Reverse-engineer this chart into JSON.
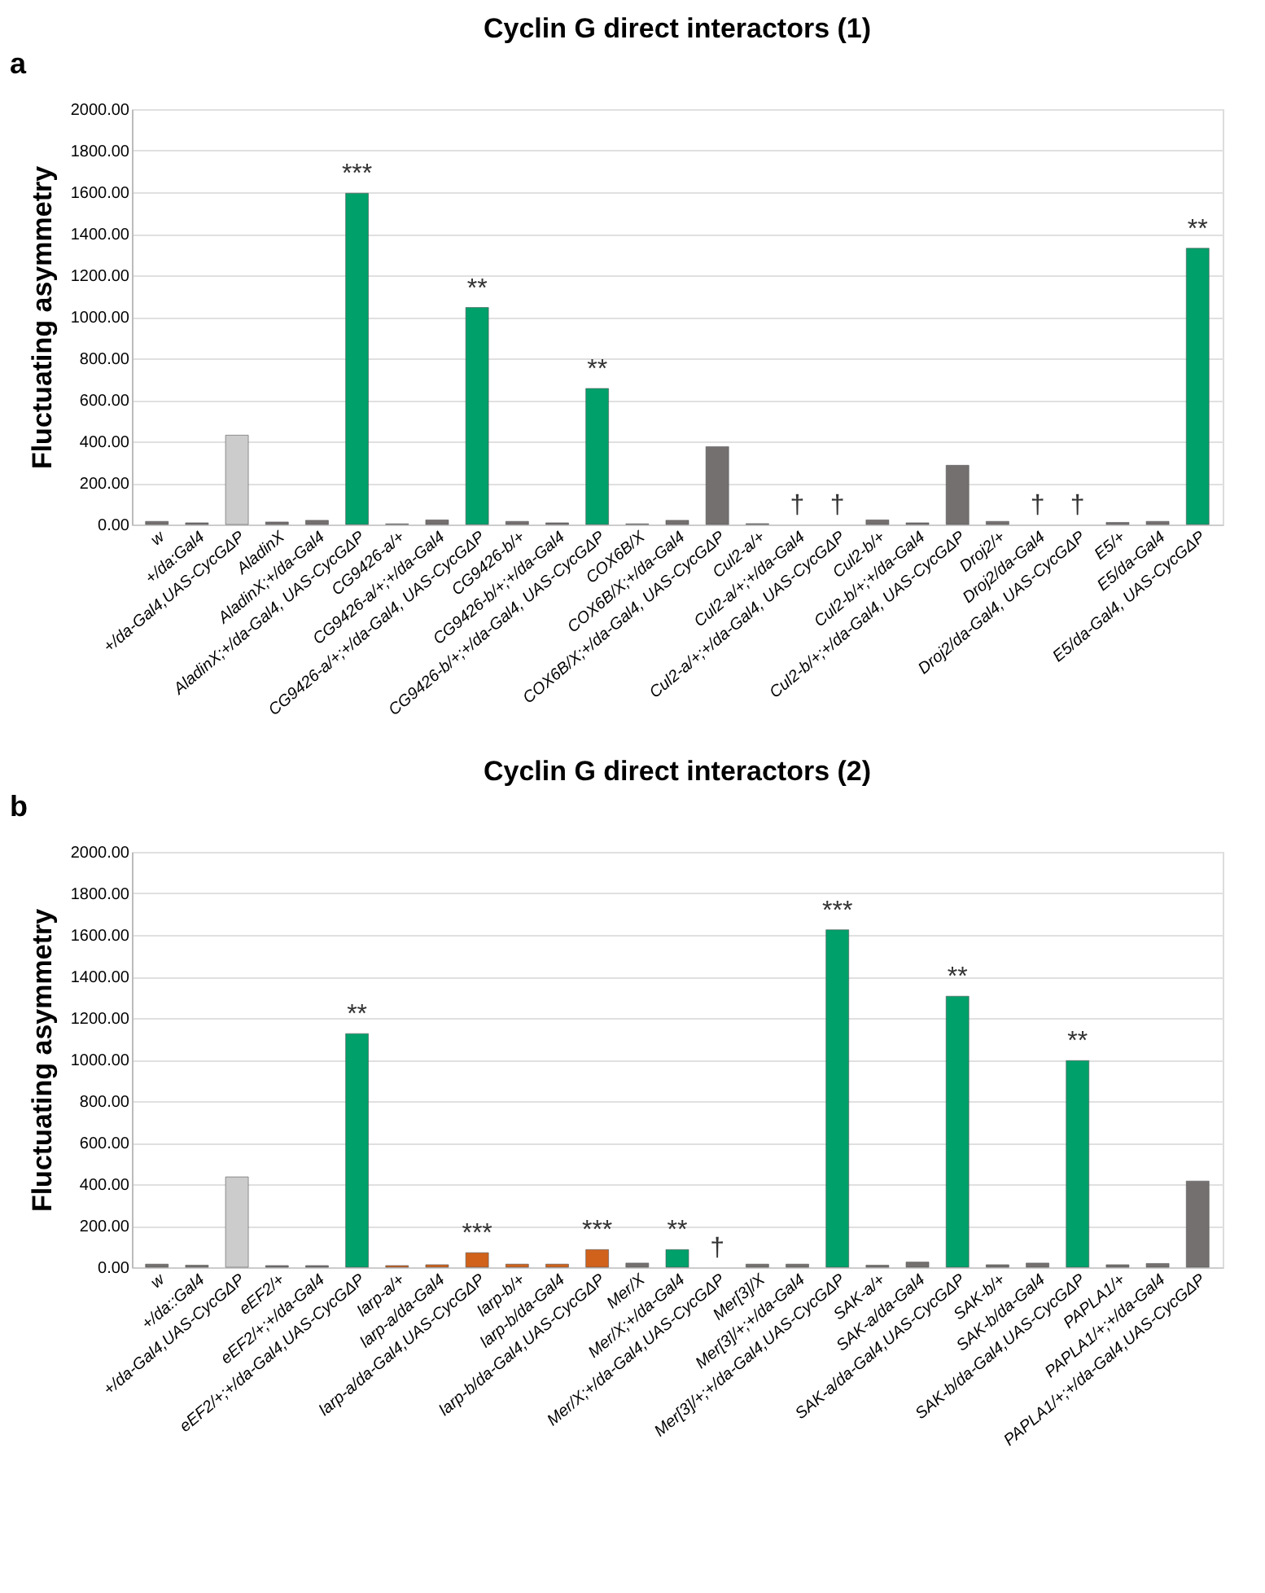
{
  "chart_data": [
    {
      "type": "bar",
      "title": "Cyclin G direct interactors (1)",
      "ylabel": "Fluctuating asymmetry",
      "categories": [
        "w",
        "+/da:Gal4",
        "+/da-Gal4,UAS-CycGΔP",
        "AladinX",
        "AladinX;+/da-Gal4",
        "AladinX;+/da-Gal4, UAS-CycGΔP",
        "CG9426-a/+",
        "CG9426-a/+;+/da-Gal4",
        "CG9426-a/+;+/da-Gal4, UAS-CycGΔP",
        "CG9426-b/+",
        "CG9426-b/+;+/da-Gal4",
        "CG9426-b/+;+/da-Gal4, UAS-CycGΔP",
        "COX6B/X",
        "COX6B/X;+/da-Gal4",
        "COX6B/X;+/da-Gal4, UAS-CycGΔP",
        "Cul2-a/+",
        "Cul2-a/+;+/da-Gal4",
        "Cul2-a/+;+/da-Gal4, UAS-CycGΔP",
        "Cul2-b/+",
        "Cul2-b/+;+/da-Gal4",
        "Cul2-b/+;+/da-Gal4, UAS-CycGΔP",
        "Droj2/+",
        "Droj2/da-Gal4",
        "Droj2/da-Gal4, UAS-CycGΔP",
        "E5/+",
        "E5/da-Gal4",
        "E5/da-Gal4, UAS-CycGΔP"
      ],
      "values": [
        15,
        8,
        430,
        12,
        20,
        1595,
        3,
        22,
        1045,
        15,
        8,
        655,
        3,
        20,
        375,
        4,
        null,
        null,
        22,
        8,
        285,
        15,
        null,
        null,
        10,
        15,
        1330
      ],
      "colors": [
        "#757070",
        "#757070",
        "#cccccc",
        "#757070",
        "#757070",
        "#00a06a",
        "#757070",
        "#757070",
        "#00a06a",
        "#757070",
        "#757070",
        "#00a06a",
        "#757070",
        "#757070",
        "#757070",
        "#757070",
        "#757070",
        "#757070",
        "#757070",
        "#757070",
        "#757070",
        "#757070",
        "#757070",
        "#757070",
        "#757070",
        "#757070",
        "#00a06a"
      ],
      "ylim": [
        0,
        2000
      ],
      "yticks": [
        {
          "value": 0,
          "label": "0.00"
        },
        {
          "value": 200,
          "label": "200.00"
        },
        {
          "value": 400,
          "label": "400.00"
        },
        {
          "value": 600,
          "label": "600.00"
        },
        {
          "value": 800,
          "label": "800.00"
        },
        {
          "value": 1000,
          "label": "1000.00"
        },
        {
          "value": 1200,
          "label": "1200.00"
        },
        {
          "value": 1400,
          "label": "1400.00"
        },
        {
          "value": 1600,
          "label": "1600.00"
        },
        {
          "value": 1800,
          "label": "1800.00"
        },
        {
          "value": 2000,
          "label": "2000.00"
        }
      ],
      "grid": "y",
      "annotations": [
        "a",
        {
          "text": "***",
          "x": "AladinX;+/da-Gal4, UAS-CycGΔP",
          "y": 1595
        },
        {
          "text": "**",
          "x": "CG9426-a/+;+/da-Gal4, UAS-CycGΔP",
          "y": 1045
        },
        {
          "text": "**",
          "x": "CG9426-b/+;+/da-Gal4, UAS-CycGΔP",
          "y": 655
        },
        {
          "text": "**",
          "x": "E5/da-Gal4, UAS-CycGΔP",
          "y": 1330
        },
        "†",
        "†",
        "†",
        "†"
      ]
    },
    {
      "type": "bar",
      "title": "Cyclin G direct interactors (2)",
      "ylabel": "Fluctuating asymmetry",
      "categories": [
        "w",
        "+/da::Gal4",
        "+/da-Gal4,UAS-CycGΔP",
        "eEF2/+",
        "eEF2/+;+/da-Gal4",
        "eEF2/+;+/da-Gal4,UAS-CycGΔP",
        "larp-a/+",
        "larp-a/da-Gal4",
        "larp-a/da-Gal4,UAS-CycGΔP",
        "larp-b/+",
        "larp-b/da-Gal4",
        "larp-b/da-Gal4,UAS-CycGΔP",
        "Mer/X",
        "Mer/X;+/da-Gal4",
        "Mer/X;+/da-Gal4,UAS-CycGΔP",
        "Mer[3]/X",
        "Mer[3]/+;+/da-Gal4",
        "Mer[3]/+;+/da-Gal4,UAS-CycGΔP",
        "SAK-a/+",
        "SAK-a/da-Gal4",
        "SAK-a/da-Gal4,UAS-CycGΔP",
        "SAK-b/+",
        "SAK-b/da-Gal4",
        "SAK-b/da-Gal4,UAS-CycGΔP",
        "PAPLA1/+",
        "PAPLA1/+;+/da-Gal4",
        "PAPLA1/+;+/da-Gal4,UAS-CycGΔP"
      ],
      "values": [
        15,
        10,
        435,
        8,
        8,
        1125,
        8,
        12,
        70,
        15,
        15,
        85,
        20,
        85,
        null,
        15,
        15,
        1625,
        10,
        25,
        1305,
        12,
        20,
        995,
        12,
        18,
        415
      ],
      "colors": [
        "#757070",
        "#757070",
        "#cccccc",
        "#757070",
        "#757070",
        "#00a06a",
        "#d0621c",
        "#d0621c",
        "#d0621c",
        "#d0621c",
        "#d0621c",
        "#d0621c",
        "#757070",
        "#00a06a",
        "#757070",
        "#757070",
        "#757070",
        "#00a06a",
        "#757070",
        "#757070",
        "#00a06a",
        "#757070",
        "#757070",
        "#00a06a",
        "#757070",
        "#757070",
        "#757070"
      ],
      "ylim": [
        0,
        2000
      ],
      "yticks": [
        {
          "value": 0,
          "label": "0.00"
        },
        {
          "value": 200,
          "label": "200.00"
        },
        {
          "value": 400,
          "label": "400.00"
        },
        {
          "value": 600,
          "label": "600.00"
        },
        {
          "value": 800,
          "label": "800.00"
        },
        {
          "value": 1000,
          "label": "1000.00"
        },
        {
          "value": 1200,
          "label": "1200.00"
        },
        {
          "value": 1400,
          "label": "1400.00"
        },
        {
          "value": 1600,
          "label": "1600.00"
        },
        {
          "value": 1800,
          "label": "1800.00"
        },
        {
          "value": 2000,
          "label": "2000.00"
        }
      ],
      "grid": "y",
      "annotations": [
        "b",
        {
          "text": "**",
          "x": "eEF2/+;+/da-Gal4,UAS-CycGΔP",
          "y": 1125
        },
        {
          "text": "***",
          "x": "larp-a/da-Gal4,UAS-CycGΔP",
          "y": 70
        },
        {
          "text": "***",
          "x": "larp-b/da-Gal4,UAS-CycGΔP",
          "y": 85
        },
        {
          "text": "**",
          "x": "Mer/X;+/da-Gal4",
          "y": 85
        },
        {
          "text": "***",
          "x": "Mer[3]/+;+/da-Gal4,UAS-CycGΔP",
          "y": 1625
        },
        {
          "text": "**",
          "x": "SAK-a/da-Gal4,UAS-CycGΔP",
          "y": 1305
        },
        {
          "text": "**",
          "x": "SAK-b/da-Gal4,UAS-CycGΔP",
          "y": 995
        },
        "†"
      ]
    }
  ]
}
